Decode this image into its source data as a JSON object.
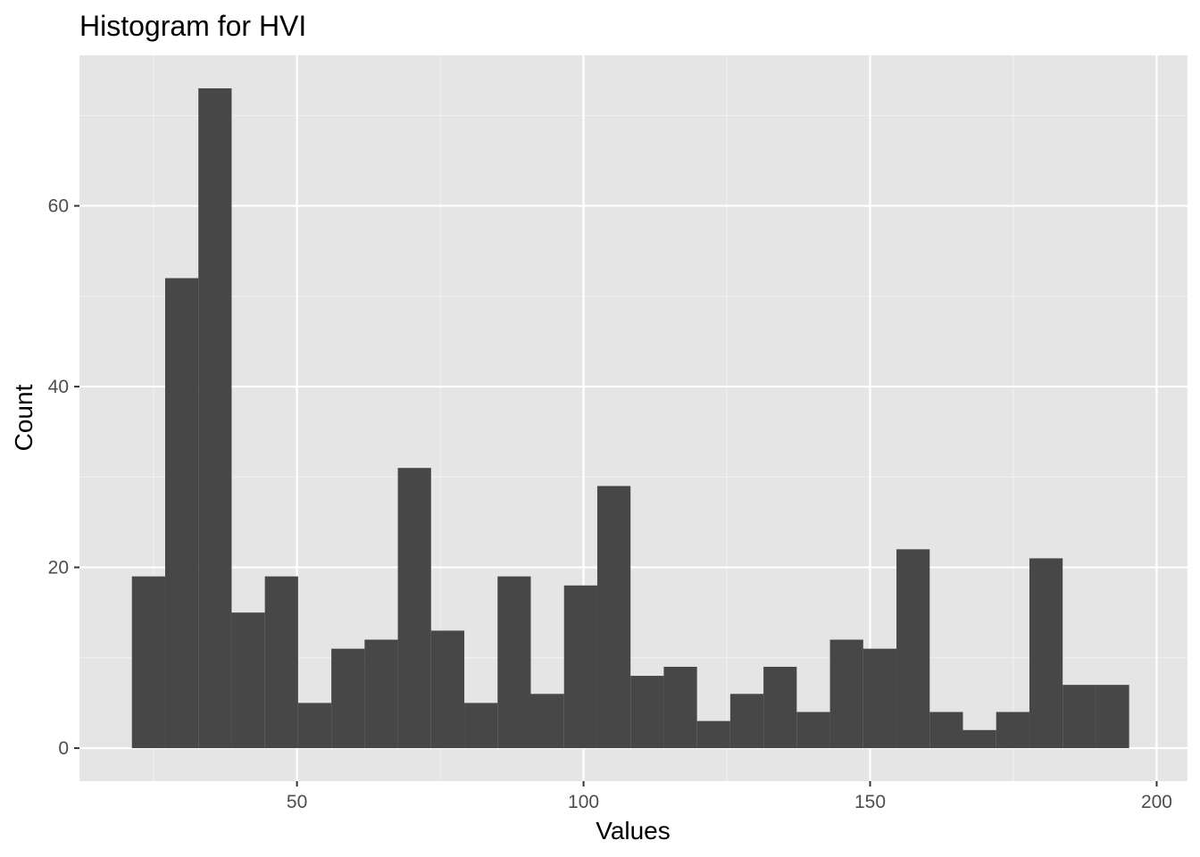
{
  "chart_data": {
    "type": "bar",
    "title": "Histogram for HVI",
    "xlabel": "Values",
    "ylabel": "Count",
    "x_ticks": [
      50,
      100,
      150,
      200
    ],
    "y_ticks": [
      0,
      20,
      40,
      60
    ],
    "xlim": [
      12.05,
      205.38
    ],
    "ylim": [
      -3.65,
      76.65
    ],
    "bin_edges": [
      21.2,
      27.0,
      32.8,
      38.6,
      44.4,
      50.2,
      56.0,
      61.8,
      67.6,
      73.4,
      79.2,
      85.0,
      90.8,
      96.6,
      102.4,
      108.2,
      114.0,
      119.8,
      125.6,
      131.4,
      137.2,
      143.0,
      148.8,
      154.6,
      160.4,
      166.2,
      172.0,
      177.8,
      183.6,
      189.4,
      195.2
    ],
    "counts": [
      19,
      52,
      73,
      15,
      19,
      5,
      11,
      12,
      31,
      13,
      5,
      19,
      6,
      18,
      29,
      8,
      9,
      3,
      6,
      9,
      4,
      12,
      11,
      22,
      4,
      2,
      4,
      21,
      7,
      7
    ],
    "grid": true,
    "colors": {
      "bar": "#474747",
      "panel_background": "#e5e5e5",
      "grid_major": "#ffffff",
      "grid_minor": "#f2f2f2"
    }
  }
}
